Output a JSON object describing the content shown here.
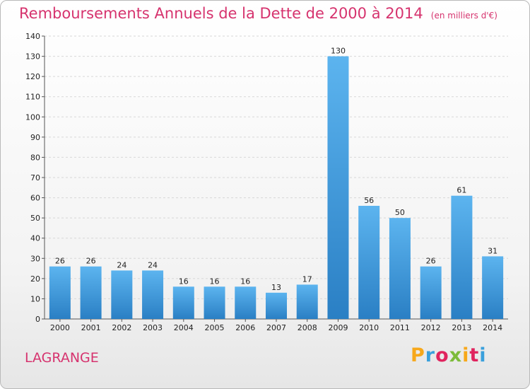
{
  "header": {
    "title": "Remboursements Annuels de la Dette de 2000 à 2014",
    "unit": "(en milliers d'€)"
  },
  "commune": "LAGRANGE",
  "logo": {
    "letters": [
      "P",
      "r",
      "o",
      "x",
      "i",
      "t",
      "i"
    ],
    "colors": [
      "#f7a81b",
      "#3aa0dc",
      "#e0245e",
      "#7dbb3a",
      "#f7a81b",
      "#e0245e",
      "#3aa0dc"
    ]
  },
  "chart_data": {
    "type": "bar",
    "title": "Remboursements Annuels de la Dette de 2000 à 2014",
    "subtitle": "(en milliers d'€)",
    "xlabel": "",
    "ylabel": "",
    "categories": [
      "2000",
      "2001",
      "2002",
      "2003",
      "2004",
      "2005",
      "2006",
      "2007",
      "2008",
      "2009",
      "2010",
      "2011",
      "2012",
      "2013",
      "2014"
    ],
    "values": [
      26,
      26,
      24,
      24,
      16,
      16,
      16,
      13,
      17,
      130,
      56,
      50,
      26,
      61,
      31
    ],
    "ylim": [
      0,
      140
    ],
    "yticks": [
      0,
      10,
      20,
      30,
      40,
      50,
      60,
      70,
      80,
      90,
      100,
      110,
      120,
      130,
      140
    ],
    "grid": true,
    "bar_color": "#3f9de0"
  }
}
